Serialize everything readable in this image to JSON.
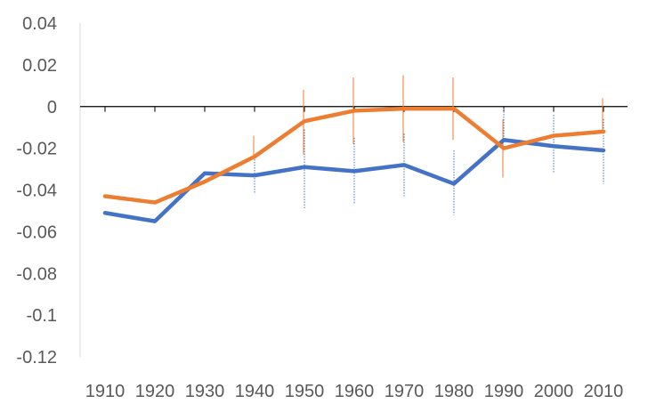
{
  "chart_data": {
    "type": "line",
    "title": "",
    "xlabel": "",
    "ylabel": "",
    "categories": [
      "1910",
      "1920",
      "1930",
      "1940",
      "1950",
      "1960",
      "1970",
      "1980",
      "1990",
      "2000",
      "2010"
    ],
    "ylim": [
      -0.12,
      0.04
    ],
    "yticks": [
      0.04,
      0.02,
      0,
      -0.02,
      -0.04,
      -0.06,
      -0.08,
      -0.1,
      -0.12
    ],
    "ytick_labels": [
      "0.04",
      "0.02",
      "0",
      "-0.02",
      "-0.04",
      "-0.06",
      "-0.08",
      "-0.1",
      "-0.12"
    ],
    "grid": false,
    "legend": "none",
    "series": [
      {
        "color": "#4472C4",
        "values": [
          -0.051,
          -0.055,
          -0.032,
          -0.033,
          -0.029,
          -0.031,
          -0.028,
          -0.037,
          -0.016,
          -0.019,
          -0.021
        ],
        "error_low": [
          null,
          null,
          null,
          -0.042,
          -0.049,
          -0.047,
          -0.043,
          -0.052,
          null,
          -0.032,
          -0.037
        ],
        "error_high": [
          null,
          null,
          null,
          -0.024,
          -0.011,
          -0.015,
          -0.013,
          -0.021,
          -0.001,
          -0.004,
          -0.006
        ]
      },
      {
        "color": "#ED7D31",
        "values": [
          -0.043,
          -0.046,
          -0.036,
          -0.024,
          -0.007,
          -0.002,
          -0.001,
          -0.001,
          -0.02,
          -0.014,
          -0.012
        ],
        "error_low": [
          null,
          null,
          null,
          null,
          -0.023,
          -0.018,
          -0.017,
          -0.016,
          -0.034,
          null,
          null
        ],
        "error_high": [
          null,
          null,
          null,
          -0.014,
          0.008,
          0.014,
          0.015,
          0.014,
          -0.006,
          null,
          0.004
        ]
      }
    ]
  }
}
